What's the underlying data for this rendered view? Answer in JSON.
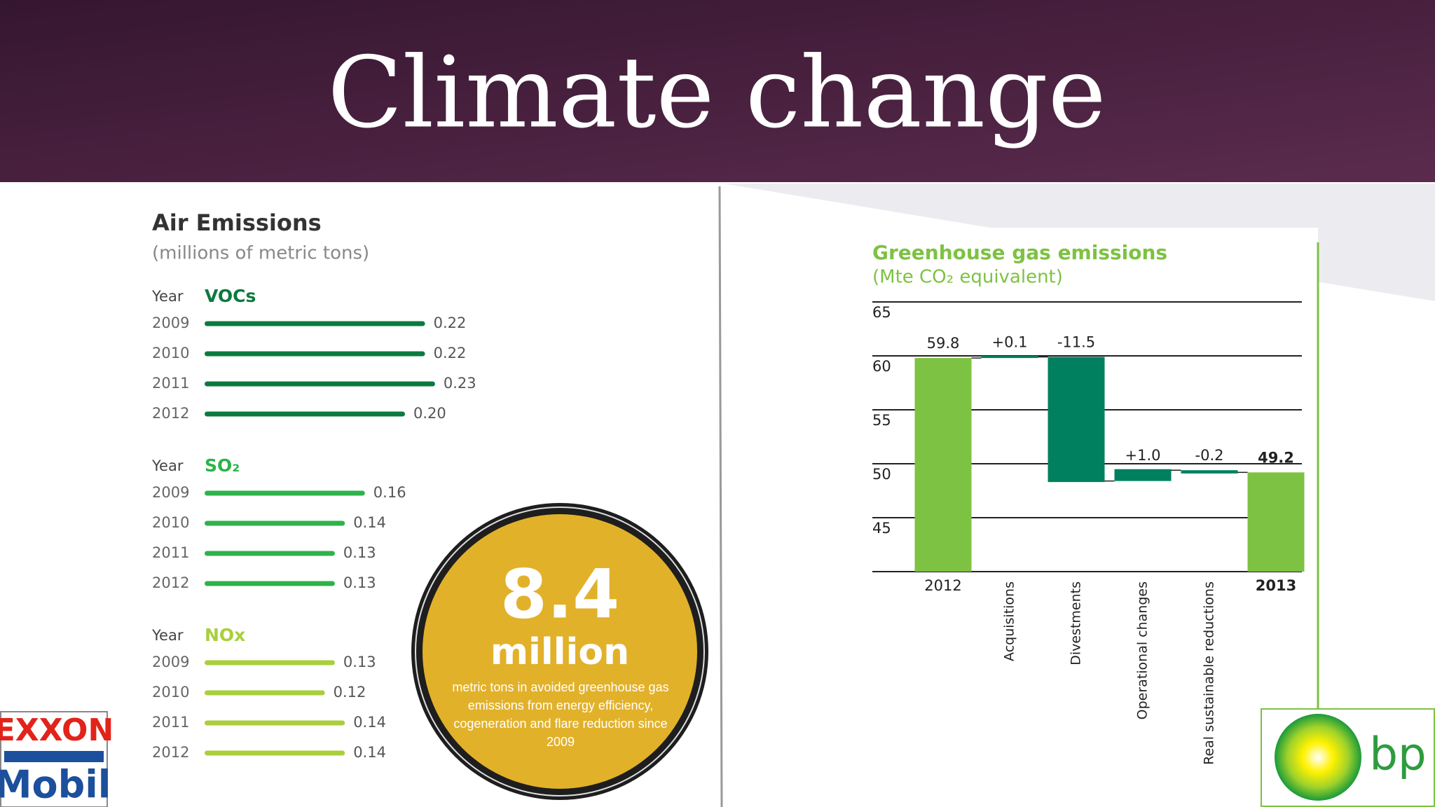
{
  "slide_title": "Climate change",
  "chart_data": [
    {
      "type": "bar",
      "orientation": "horizontal",
      "title": "Air Emissions",
      "subtitle": "(millions of metric tons)",
      "panels": [
        {
          "header": "Year",
          "name": "VOCs",
          "color": "#0b7a3f",
          "categories": [
            "2009",
            "2010",
            "2011",
            "2012"
          ],
          "values": [
            0.22,
            0.22,
            0.23,
            0.2
          ],
          "value_labels": [
            "0.22",
            "0.22",
            "0.23",
            "0.20"
          ]
        },
        {
          "header": "Year",
          "name": "SO₂",
          "color": "#2db34a",
          "categories": [
            "2009",
            "2010",
            "2011",
            "2012"
          ],
          "values": [
            0.16,
            0.14,
            0.13,
            0.13
          ],
          "value_labels": [
            "0.16",
            "0.14",
            "0.13",
            "0.13"
          ]
        },
        {
          "header": "Year",
          "name": "NOx",
          "color": "#a9cf3b",
          "categories": [
            "2009",
            "2010",
            "2011",
            "2012"
          ],
          "values": [
            0.13,
            0.12,
            0.14,
            0.14
          ],
          "value_labels": [
            "0.13",
            "0.12",
            "0.14",
            "0.14"
          ]
        }
      ]
    },
    {
      "type": "waterfall",
      "title": "Greenhouse gas emissions",
      "subtitle": "(Mte CO₂ equivalent)",
      "categories": [
        "2012",
        "Acquisitions",
        "Divestments",
        "Operational changes",
        "Real sustainable reductions",
        "2013"
      ],
      "values": [
        59.8,
        0.1,
        -11.5,
        1.0,
        -0.2,
        49.2
      ],
      "value_labels": [
        "59.8",
        "+0.1",
        "-11.5",
        "+1.0",
        "-0.2",
        "49.2"
      ],
      "total_color": "#7dc242",
      "change_color": "#00805f",
      "ylim": [
        40,
        65
      ],
      "yticks": [
        45,
        50,
        55,
        60,
        65
      ],
      "grid": true
    }
  ],
  "callout": {
    "value": 8.4,
    "unit": "million",
    "text": "metric tons in avoided greenhouse gas emissions from energy efficiency, cogeneration and flare reduction since 2009"
  },
  "logos": {
    "exxon_top": "EXXON",
    "exxon_bottom": "Mobil",
    "bp": "bp"
  }
}
